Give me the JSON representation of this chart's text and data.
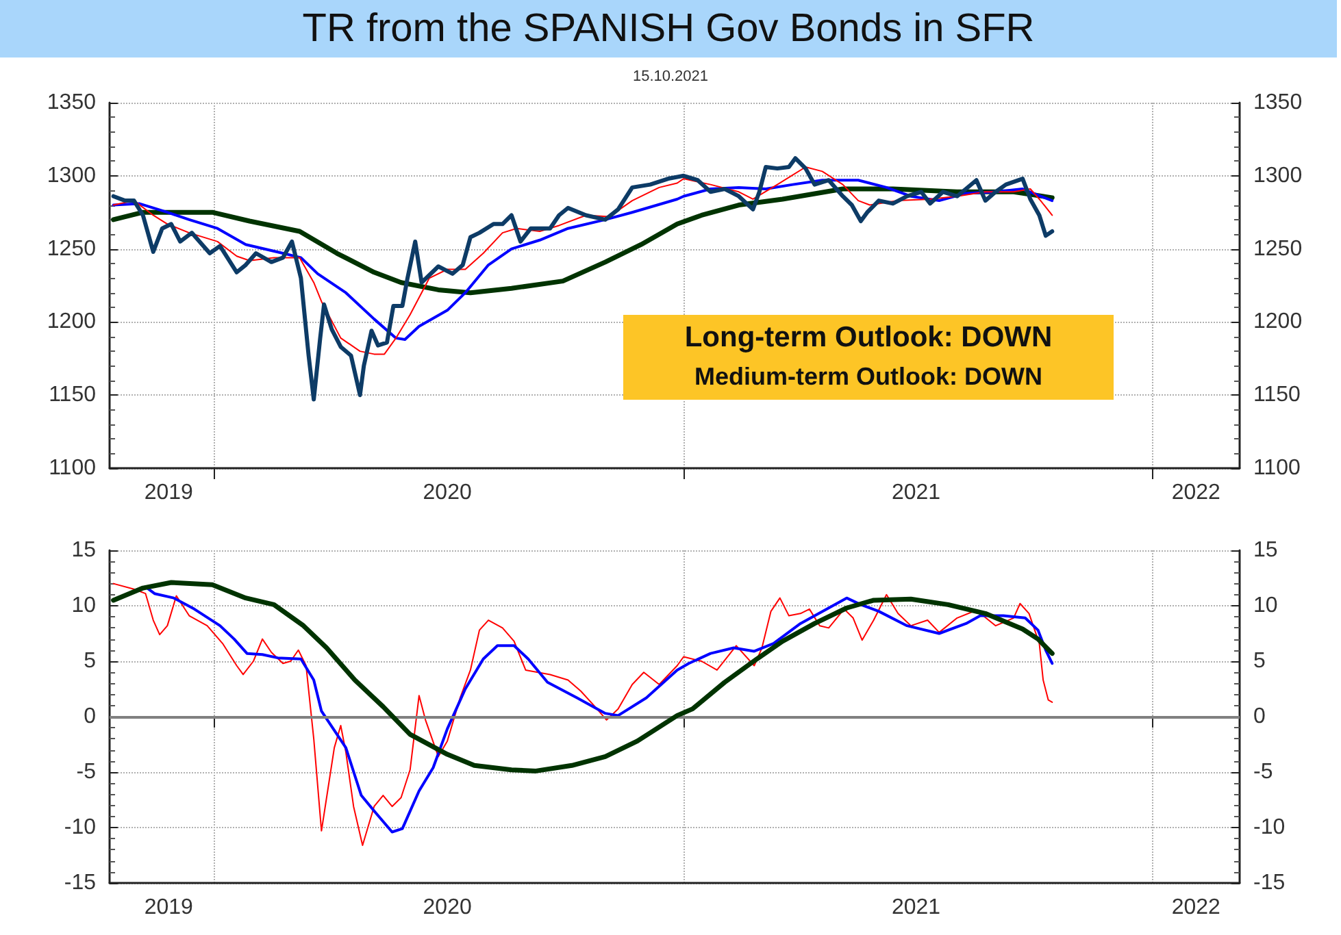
{
  "chart_data": [
    {
      "type": "line",
      "title": "TR from the SPANISH Gov Bonds in SFR",
      "subtitle": "15.10.2021",
      "annotations": [
        "Long-term Outlook: DOWN",
        "Medium-term Outlook: DOWN"
      ],
      "marker": "none",
      "line_style": "solid",
      "grid": true,
      "xlim": [
        "2019-10-12",
        "2022-03-10"
      ],
      "xticks": [
        {
          "value": "2019-11-27",
          "label": "2019"
        },
        {
          "value": "2020-01-01",
          "label": null
        },
        {
          "value": "2020-07-01",
          "label": "2020"
        },
        {
          "value": "2021-01-01",
          "label": null
        },
        {
          "value": "2021-07-01",
          "label": "2021"
        },
        {
          "value": "2022-01-01",
          "label": null
        },
        {
          "value": "2022-02-04",
          "label": "2022"
        }
      ],
      "ylim": [
        1100,
        1350
      ],
      "yticks": [
        1100,
        1150,
        1200,
        1250,
        1300,
        1350
      ],
      "y2lim": [
        1100,
        1350
      ],
      "y2ticks": [
        1100,
        1150,
        1200,
        1250,
        1300,
        1350
      ],
      "series": [
        {
          "color": "#003300",
          "x": [
            "2019-10-15",
            "2019-11-07",
            "2019-12-31",
            "2020-01-29",
            "2020-03-08",
            "2020-04-06",
            "2020-05-05",
            "2020-05-26",
            "2020-06-24",
            "2020-07-19",
            "2020-08-20",
            "2020-09-29",
            "2020-11-01",
            "2020-11-29",
            "2020-12-27",
            "2021-01-15",
            "2021-02-13",
            "2021-03-19",
            "2021-05-05",
            "2021-06-13",
            "2021-08-02",
            "2021-09-15",
            "2021-10-15"
          ],
          "values": [
            1270,
            1275,
            1275,
            1269,
            1262,
            1247,
            1234,
            1227,
            1222,
            1220,
            1223,
            1228,
            1241,
            1253,
            1267,
            1273,
            1280,
            1284,
            1291,
            1291,
            1289,
            1289,
            1285
          ]
        },
        {
          "color": "#0000ff",
          "x": [
            "2019-10-15",
            "2019-11-04",
            "2019-11-26",
            "2019-12-13",
            "2020-01-04",
            "2020-01-26",
            "2020-02-24",
            "2020-03-09",
            "2020-03-22",
            "2020-04-13",
            "2020-05-05",
            "2020-05-22",
            "2020-05-29",
            "2020-06-09",
            "2020-07-01",
            "2020-07-15",
            "2020-08-02",
            "2020-08-20",
            "2020-09-11",
            "2020-10-03",
            "2020-11-01",
            "2020-11-22",
            "2020-12-27",
            "2021-01-01",
            "2021-01-22",
            "2021-02-13",
            "2021-03-06",
            "2021-03-27",
            "2021-04-19",
            "2021-05-17",
            "2021-06-08",
            "2021-06-27",
            "2021-07-19",
            "2021-08-09",
            "2021-09-01",
            "2021-09-22",
            "2021-10-06",
            "2021-10-15"
          ],
          "values": [
            1280,
            1281,
            1275,
            1270,
            1264,
            1253,
            1247,
            1244,
            1233,
            1220,
            1202,
            1189,
            1188,
            1197,
            1208,
            1220,
            1239,
            1250,
            1256,
            1264,
            1270,
            1275,
            1284,
            1286,
            1291,
            1292,
            1291,
            1294,
            1297,
            1297,
            1292,
            1286,
            1283,
            1288,
            1289,
            1291,
            1286,
            1283
          ]
        },
        {
          "color": "#ff0000",
          "x": [
            "2019-10-15",
            "2019-10-31",
            "2019-11-15",
            "2019-11-26",
            "2019-12-13",
            "2020-01-04",
            "2020-01-19",
            "2020-01-29",
            "2020-02-17",
            "2020-03-08",
            "2020-03-19",
            "2020-03-25",
            "2020-04-09",
            "2020-04-24",
            "2020-05-05",
            "2020-05-13",
            "2020-05-22",
            "2020-06-02",
            "2020-06-17",
            "2020-07-01",
            "2020-07-15",
            "2020-07-29",
            "2020-08-13",
            "2020-08-24",
            "2020-09-11",
            "2020-09-26",
            "2020-10-17",
            "2020-11-04",
            "2020-11-22",
            "2020-12-13",
            "2020-12-27",
            "2021-01-01",
            "2021-01-22",
            "2021-02-13",
            "2021-02-24",
            "2021-03-15",
            "2021-04-06",
            "2021-04-19",
            "2021-05-05",
            "2021-05-17",
            "2021-05-26",
            "2021-06-17",
            "2021-07-12",
            "2021-08-02",
            "2021-08-24",
            "2021-09-15",
            "2021-09-28",
            "2021-10-06",
            "2021-10-15"
          ],
          "values": [
            1280,
            1283,
            1273,
            1267,
            1261,
            1255,
            1245,
            1242,
            1244,
            1244,
            1227,
            1214,
            1189,
            1180,
            1178,
            1178,
            1189,
            1205,
            1230,
            1236,
            1236,
            1247,
            1261,
            1264,
            1262,
            1266,
            1273,
            1272,
            1283,
            1292,
            1295,
            1298,
            1294,
            1289,
            1284,
            1294,
            1306,
            1303,
            1294,
            1283,
            1280,
            1283,
            1284,
            1286,
            1289,
            1289,
            1291,
            1283,
            1273
          ]
        },
        {
          "color": "#0d3b66",
          "x": [
            "2019-10-15",
            "2019-10-24",
            "2019-10-31",
            "2019-11-07",
            "2019-11-15",
            "2019-11-22",
            "2019-11-29",
            "2019-12-06",
            "2019-12-15",
            "2019-12-29",
            "2020-01-06",
            "2020-01-19",
            "2020-01-26",
            "2020-02-03",
            "2020-02-15",
            "2020-02-24",
            "2020-03-02",
            "2020-03-09",
            "2020-03-15",
            "2020-03-19",
            "2020-03-24",
            "2020-03-27",
            "2020-04-02",
            "2020-04-09",
            "2020-04-17",
            "2020-04-24",
            "2020-04-27",
            "2020-05-03",
            "2020-05-08",
            "2020-05-15",
            "2020-05-20",
            "2020-05-27",
            "2020-05-31",
            "2020-06-06",
            "2020-06-11",
            "2020-06-24",
            "2020-07-05",
            "2020-07-13",
            "2020-07-19",
            "2020-07-26",
            "2020-08-06",
            "2020-08-13",
            "2020-08-20",
            "2020-08-27",
            "2020-09-04",
            "2020-09-19",
            "2020-09-26",
            "2020-10-03",
            "2020-10-17",
            "2020-11-01",
            "2020-11-11",
            "2020-11-22",
            "2020-12-06",
            "2020-12-20",
            "2021-01-01",
            "2021-01-12",
            "2021-01-22",
            "2021-02-02",
            "2021-02-13",
            "2021-02-24",
            "2021-03-01",
            "2021-03-06",
            "2021-03-15",
            "2021-03-24",
            "2021-03-29",
            "2021-04-06",
            "2021-04-13",
            "2021-04-24",
            "2021-05-05",
            "2021-05-12",
            "2021-05-19",
            "2021-05-24",
            "2021-06-02",
            "2021-06-13",
            "2021-06-24",
            "2021-07-05",
            "2021-07-12",
            "2021-07-22",
            "2021-08-02",
            "2021-08-17",
            "2021-08-24",
            "2021-09-01",
            "2021-09-09",
            "2021-09-22",
            "2021-09-28",
            "2021-10-05",
            "2021-10-10",
            "2021-10-15"
          ],
          "values": [
            1286,
            1283,
            1283,
            1273,
            1248,
            1264,
            1267,
            1255,
            1261,
            1247,
            1252,
            1234,
            1239,
            1247,
            1241,
            1244,
            1255,
            1230,
            1177,
            1147,
            1189,
            1212,
            1195,
            1183,
            1177,
            1150,
            1170,
            1194,
            1184,
            1186,
            1211,
            1211,
            1230,
            1255,
            1227,
            1238,
            1233,
            1239,
            1258,
            1261,
            1267,
            1267,
            1273,
            1255,
            1264,
            1264,
            1273,
            1278,
            1273,
            1270,
            1277,
            1292,
            1294,
            1298,
            1300,
            1297,
            1289,
            1291,
            1286,
            1277,
            1289,
            1306,
            1305,
            1306,
            1312,
            1305,
            1294,
            1297,
            1286,
            1280,
            1269,
            1275,
            1283,
            1281,
            1286,
            1289,
            1281,
            1289,
            1286,
            1297,
            1283,
            1289,
            1294,
            1298,
            1284,
            1273,
            1259,
            1262
          ]
        }
      ]
    },
    {
      "type": "line",
      "marker": "none",
      "line_style": "solid",
      "grid": true,
      "xlim": [
        "2019-10-12",
        "2022-03-10"
      ],
      "xticks": [
        {
          "value": "2019-11-27",
          "label": "2019"
        },
        {
          "value": "2020-01-01",
          "label": null
        },
        {
          "value": "2020-07-01",
          "label": "2020"
        },
        {
          "value": "2021-01-01",
          "label": null
        },
        {
          "value": "2021-07-01",
          "label": "2021"
        },
        {
          "value": "2022-01-01",
          "label": null
        },
        {
          "value": "2022-02-04",
          "label": "2022"
        }
      ],
      "ylim": [
        -15,
        15
      ],
      "yticks": [
        -15,
        -10,
        -5,
        0,
        5,
        10,
        15
      ],
      "y2lim": [
        -15,
        15
      ],
      "y2ticks": [
        -15,
        -10,
        -5,
        0,
        5,
        10,
        15
      ],
      "ref_lines": [
        {
          "axis": "y",
          "value": 0,
          "color": "#808080"
        }
      ],
      "series": [
        {
          "color": "#ff0000",
          "x": [
            "2019-10-15",
            "2019-10-31",
            "2019-11-09",
            "2019-11-15",
            "2019-11-20",
            "2019-11-26",
            "2019-12-03",
            "2019-12-13",
            "2019-12-27",
            "2020-01-08",
            "2020-01-19",
            "2020-01-24",
            "2020-02-01",
            "2020-02-08",
            "2020-02-15",
            "2020-02-24",
            "2020-03-01",
            "2020-03-07",
            "2020-03-13",
            "2020-03-19",
            "2020-03-25",
            "2020-03-29",
            "2020-04-04",
            "2020-04-09",
            "2020-04-13",
            "2020-04-19",
            "2020-04-26",
            "2020-05-05",
            "2020-05-12",
            "2020-05-19",
            "2020-05-26",
            "2020-06-02",
            "2020-06-09",
            "2020-06-14",
            "2020-06-24",
            "2020-07-01",
            "2020-07-11",
            "2020-07-19",
            "2020-07-26",
            "2020-08-02",
            "2020-08-13",
            "2020-08-22",
            "2020-08-31",
            "2020-09-19",
            "2020-10-03",
            "2020-10-13",
            "2020-10-24",
            "2020-11-02",
            "2020-11-11",
            "2020-11-22",
            "2020-12-01",
            "2020-12-13",
            "2020-12-27",
            "2021-01-01",
            "2021-01-15",
            "2021-01-27",
            "2021-02-11",
            "2021-02-25",
            "2021-03-03",
            "2021-03-10",
            "2021-03-17",
            "2021-03-24",
            "2021-04-02",
            "2021-04-09",
            "2021-04-17",
            "2021-04-24",
            "2021-05-06",
            "2021-05-13",
            "2021-05-20",
            "2021-05-29",
            "2021-06-08",
            "2021-06-17",
            "2021-06-27",
            "2021-07-10",
            "2021-07-19",
            "2021-08-02",
            "2021-08-17",
            "2021-09-01",
            "2021-09-15",
            "2021-09-20",
            "2021-09-27",
            "2021-10-05",
            "2021-10-08",
            "2021-10-12",
            "2021-10-15"
          ],
          "values": [
            12.0,
            11.5,
            11.1,
            8.7,
            7.4,
            8.2,
            10.9,
            9.1,
            8.2,
            6.6,
            4.6,
            3.8,
            5.0,
            7.0,
            5.8,
            4.8,
            5.0,
            6.0,
            4.6,
            -2.0,
            -10.3,
            -7.3,
            -2.8,
            -0.8,
            -3.2,
            -8.1,
            -11.6,
            -8.1,
            -7.1,
            -8.1,
            -7.3,
            -4.8,
            1.9,
            -0.3,
            -3.6,
            -2.2,
            1.7,
            4.2,
            7.8,
            8.7,
            8.0,
            6.8,
            4.2,
            3.8,
            3.3,
            2.3,
            0.9,
            -0.3,
            0.7,
            2.9,
            4.0,
            2.9,
            4.6,
            5.4,
            5.0,
            4.2,
            6.4,
            4.6,
            6.2,
            9.5,
            10.7,
            9.1,
            9.3,
            9.7,
            8.2,
            8.0,
            9.7,
            8.9,
            6.9,
            8.7,
            11.0,
            9.3,
            8.2,
            8.7,
            7.6,
            8.9,
            9.6,
            8.2,
            8.9,
            10.2,
            9.3,
            6.6,
            3.3,
            1.5,
            1.3
          ]
        },
        {
          "color": "#0000ff",
          "x": [
            "2019-10-15",
            "2019-11-09",
            "2019-11-16",
            "2019-12-01",
            "2019-12-17",
            "2020-01-06",
            "2020-01-17",
            "2020-01-27",
            "2020-02-08",
            "2020-02-20",
            "2020-03-09",
            "2020-03-19",
            "2020-03-25",
            "2020-04-13",
            "2020-04-25",
            "2020-05-05",
            "2020-05-19",
            "2020-05-27",
            "2020-06-09",
            "2020-06-20",
            "2020-07-01",
            "2020-07-15",
            "2020-07-29",
            "2020-08-09",
            "2020-08-22",
            "2020-09-02",
            "2020-09-17",
            "2020-10-10",
            "2020-11-01",
            "2020-11-11",
            "2020-12-03",
            "2020-12-27",
            "2021-01-05",
            "2021-01-22",
            "2021-02-09",
            "2021-02-25",
            "2021-03-12",
            "2021-04-02",
            "2021-04-24",
            "2021-05-08",
            "2021-05-19",
            "2021-06-02",
            "2021-06-24",
            "2021-07-19",
            "2021-08-09",
            "2021-08-20",
            "2021-09-07",
            "2021-09-24",
            "2021-10-04",
            "2021-10-10",
            "2021-10-15"
          ],
          "values": [
            10.5,
            11.7,
            11.1,
            10.7,
            9.7,
            8.2,
            7.0,
            5.7,
            5.6,
            5.3,
            5.2,
            3.3,
            0.5,
            -2.8,
            -7.1,
            -8.5,
            -10.4,
            -10.1,
            -6.7,
            -4.6,
            -1.1,
            2.5,
            5.2,
            6.4,
            6.4,
            5.2,
            3.1,
            1.7,
            0.3,
            0.1,
            1.7,
            4.2,
            4.8,
            5.7,
            6.2,
            5.9,
            6.6,
            8.4,
            9.8,
            10.7,
            10.1,
            9.5,
            8.2,
            7.5,
            8.4,
            9.1,
            9.1,
            8.9,
            7.8,
            6.0,
            4.8
          ]
        },
        {
          "color": "#003300",
          "x": [
            "2019-10-15",
            "2019-11-07",
            "2019-11-29",
            "2019-12-31",
            "2020-01-26",
            "2020-02-17",
            "2020-03-11",
            "2020-03-29",
            "2020-04-20",
            "2020-05-12",
            "2020-06-02",
            "2020-07-01",
            "2020-07-22",
            "2020-08-20",
            "2020-09-08",
            "2020-10-06",
            "2020-11-01",
            "2020-11-26",
            "2020-12-27",
            "2021-01-08",
            "2021-02-02",
            "2021-02-27",
            "2021-03-19",
            "2021-04-13",
            "2021-05-08",
            "2021-05-29",
            "2021-06-27",
            "2021-07-26",
            "2021-08-24",
            "2021-09-22",
            "2021-10-04",
            "2021-10-15"
          ],
          "values": [
            10.5,
            11.6,
            12.1,
            11.9,
            10.7,
            10.1,
            8.2,
            6.2,
            3.3,
            0.9,
            -1.6,
            -3.4,
            -4.4,
            -4.8,
            -4.9,
            -4.4,
            -3.6,
            -2.2,
            0.1,
            0.7,
            3.1,
            5.2,
            6.8,
            8.4,
            9.8,
            10.5,
            10.6,
            10.1,
            9.3,
            7.9,
            7.0,
            5.7
          ]
        }
      ]
    }
  ]
}
